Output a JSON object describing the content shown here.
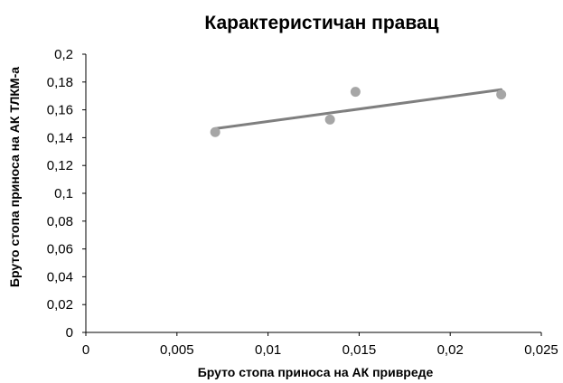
{
  "chart_data": {
    "type": "scatter",
    "title": "Карактеристичан правац",
    "xlabel": "Бруто стопа приноса на АК привреде",
    "ylabel": "Бруто стопа приноса на АК ТЛКМ-а",
    "xlim": [
      0,
      0.025
    ],
    "ylim": [
      0,
      0.2
    ],
    "x_ticks": [
      "0",
      "0,005",
      "0,01",
      "0,015",
      "0,02",
      "0,025"
    ],
    "y_ticks": [
      "0",
      "0,02",
      "0,04",
      "0,06",
      "0,08",
      "0,1",
      "0,12",
      "0,14",
      "0,16",
      "0,18",
      "0,2"
    ],
    "grid": false,
    "legend": false,
    "points": [
      {
        "x": 0.0071,
        "y": 0.144
      },
      {
        "x": 0.0134,
        "y": 0.153
      },
      {
        "x": 0.0148,
        "y": 0.173
      },
      {
        "x": 0.0228,
        "y": 0.171
      }
    ],
    "trendline": {
      "type": "linear",
      "x": [
        0.0071,
        0.0228
      ],
      "y": [
        0.1465,
        0.1745
      ]
    },
    "colors": {
      "points": "#a6a6a6",
      "trendline": "#7f7f7f",
      "axis": "#000000"
    }
  }
}
